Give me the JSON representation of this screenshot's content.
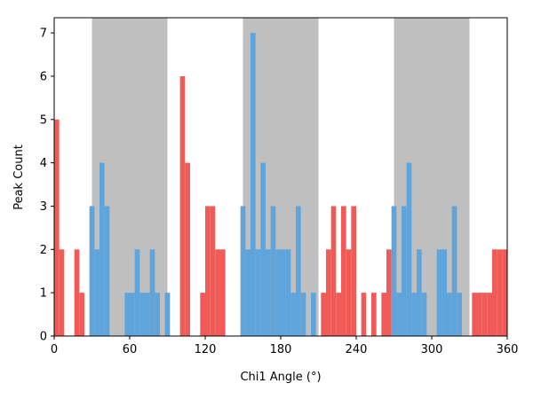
{
  "chart_data": {
    "type": "bar",
    "title": "",
    "xlabel": "Chi1 Angle (°)",
    "ylabel": "Peak Count",
    "xlim": [
      0,
      360
    ],
    "ylim": [
      0,
      7.35
    ],
    "bin_width": 4,
    "xticks": [
      0,
      60,
      120,
      180,
      240,
      300,
      360
    ],
    "yticks": [
      0,
      1,
      2,
      3,
      4,
      5,
      6,
      7
    ],
    "grid": false,
    "legend": "none",
    "shaded_ranges": [
      [
        30,
        90
      ],
      [
        150,
        210
      ],
      [
        270,
        330
      ]
    ],
    "colors": {
      "shaded": "#bfbfbf",
      "red": "#f05a57",
      "blue": "#5fa5dc"
    },
    "series": [
      {
        "color_key": "red",
        "points": [
          {
            "x": 0,
            "y": 5
          },
          {
            "x": 4,
            "y": 2
          },
          {
            "x": 16,
            "y": 2
          },
          {
            "x": 20,
            "y": 1
          },
          {
            "x": 100,
            "y": 6
          },
          {
            "x": 104,
            "y": 4
          },
          {
            "x": 116,
            "y": 1
          },
          {
            "x": 120,
            "y": 3
          },
          {
            "x": 124,
            "y": 3
          },
          {
            "x": 128,
            "y": 2
          },
          {
            "x": 132,
            "y": 2
          },
          {
            "x": 212,
            "y": 1
          },
          {
            "x": 216,
            "y": 2
          },
          {
            "x": 220,
            "y": 3
          },
          {
            "x": 224,
            "y": 1
          },
          {
            "x": 228,
            "y": 3
          },
          {
            "x": 232,
            "y": 2
          },
          {
            "x": 236,
            "y": 3
          },
          {
            "x": 244,
            "y": 1
          },
          {
            "x": 252,
            "y": 1
          },
          {
            "x": 260,
            "y": 1
          },
          {
            "x": 264,
            "y": 2
          },
          {
            "x": 332,
            "y": 1
          },
          {
            "x": 336,
            "y": 1
          },
          {
            "x": 340,
            "y": 1
          },
          {
            "x": 344,
            "y": 1
          },
          {
            "x": 348,
            "y": 2
          },
          {
            "x": 352,
            "y": 2
          },
          {
            "x": 356,
            "y": 2
          }
        ]
      },
      {
        "color_key": "blue",
        "points": [
          {
            "x": 28,
            "y": 3
          },
          {
            "x": 32,
            "y": 2
          },
          {
            "x": 36,
            "y": 4
          },
          {
            "x": 40,
            "y": 3
          },
          {
            "x": 56,
            "y": 1
          },
          {
            "x": 60,
            "y": 1
          },
          {
            "x": 64,
            "y": 2
          },
          {
            "x": 68,
            "y": 1
          },
          {
            "x": 72,
            "y": 1
          },
          {
            "x": 76,
            "y": 2
          },
          {
            "x": 80,
            "y": 1
          },
          {
            "x": 88,
            "y": 1
          },
          {
            "x": 148,
            "y": 3
          },
          {
            "x": 152,
            "y": 2
          },
          {
            "x": 156,
            "y": 7
          },
          {
            "x": 160,
            "y": 2
          },
          {
            "x": 164,
            "y": 4
          },
          {
            "x": 168,
            "y": 2
          },
          {
            "x": 172,
            "y": 3
          },
          {
            "x": 176,
            "y": 2
          },
          {
            "x": 180,
            "y": 2
          },
          {
            "x": 184,
            "y": 2
          },
          {
            "x": 188,
            "y": 1
          },
          {
            "x": 192,
            "y": 3
          },
          {
            "x": 196,
            "y": 1
          },
          {
            "x": 204,
            "y": 1
          },
          {
            "x": 268,
            "y": 3
          },
          {
            "x": 272,
            "y": 1
          },
          {
            "x": 276,
            "y": 3
          },
          {
            "x": 280,
            "y": 4
          },
          {
            "x": 284,
            "y": 1
          },
          {
            "x": 288,
            "y": 2
          },
          {
            "x": 292,
            "y": 1
          },
          {
            "x": 304,
            "y": 2
          },
          {
            "x": 308,
            "y": 2
          },
          {
            "x": 312,
            "y": 1
          },
          {
            "x": 316,
            "y": 3
          },
          {
            "x": 320,
            "y": 1
          }
        ]
      }
    ]
  }
}
